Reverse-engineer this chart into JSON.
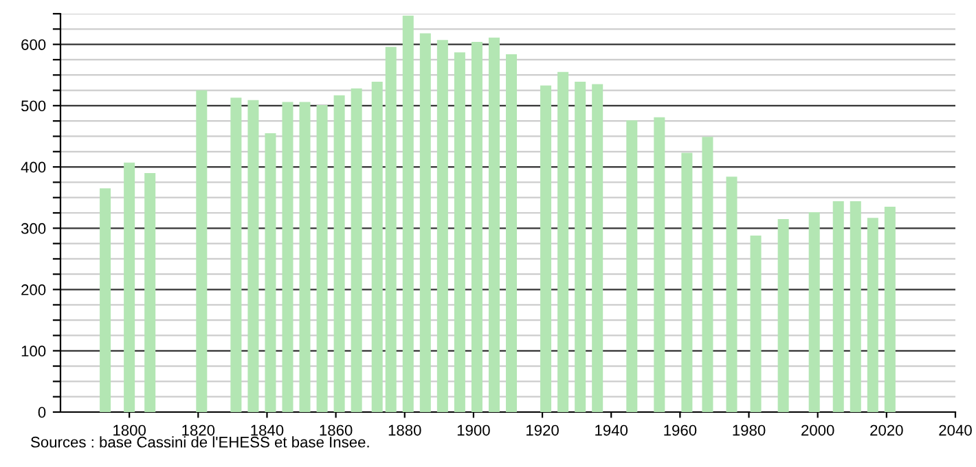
{
  "chart_data": {
    "type": "bar",
    "x": [
      1793,
      1800,
      1806,
      1821,
      1831,
      1836,
      1841,
      1846,
      1851,
      1856,
      1861,
      1866,
      1872,
      1876,
      1881,
      1886,
      1891,
      1896,
      1901,
      1906,
      1911,
      1921,
      1926,
      1931,
      1936,
      1946,
      1954,
      1962,
      1968,
      1975,
      1982,
      1990,
      1999,
      2006,
      2011,
      2016,
      2021
    ],
    "values": [
      365,
      407,
      390,
      525,
      513,
      509,
      455,
      506,
      506,
      501,
      517,
      528,
      539,
      596,
      647,
      618,
      607,
      587,
      604,
      611,
      584,
      533,
      555,
      539,
      535,
      476,
      481,
      423,
      449,
      384,
      288,
      315,
      326,
      344,
      344,
      317,
      335
    ],
    "color": "#b3e6b3",
    "xlim": [
      1780,
      2040
    ],
    "xticks": [
      1800,
      1820,
      1840,
      1860,
      1880,
      1900,
      1920,
      1940,
      1960,
      1980,
      2000,
      2020,
      2040
    ],
    "ylim": [
      0,
      650
    ],
    "yticks": [
      0,
      {
        "value": 25,
        "label": null
      },
      {
        "value": 50,
        "label": null
      },
      {
        "value": 75,
        "label": null
      },
      100,
      {
        "value": 125,
        "label": null
      },
      {
        "value": 150,
        "label": null
      },
      {
        "value": 175,
        "label": null
      },
      200,
      {
        "value": 225,
        "label": null
      },
      {
        "value": 250,
        "label": null
      },
      {
        "value": 275,
        "label": null
      },
      300,
      {
        "value": 325,
        "label": null
      },
      {
        "value": 350,
        "label": null
      },
      {
        "value": 375,
        "label": null
      },
      400,
      {
        "value": 425,
        "label": null
      },
      {
        "value": 450,
        "label": null
      },
      {
        "value": 475,
        "label": null
      },
      500,
      {
        "value": 525,
        "label": null
      },
      {
        "value": 550,
        "label": null
      },
      {
        "value": 575,
        "label": null
      },
      600,
      {
        "value": 625,
        "label": null
      },
      {
        "value": 650,
        "label": null
      }
    ],
    "grid": "y",
    "annotations": [
      "Sources : base Cassini de l'EHESS et base Insee."
    ]
  }
}
